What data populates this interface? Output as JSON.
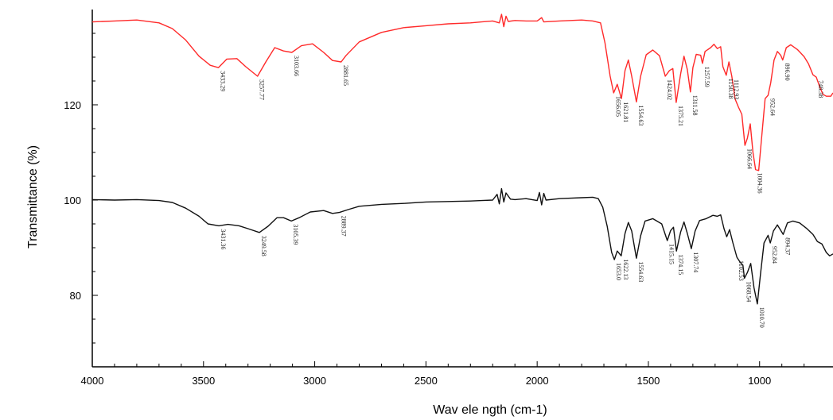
{
  "chart_data": {
    "type": "line",
    "title": "",
    "xlabel": "Wav ele ngth (cm-1)",
    "ylabel": "Transmittance (%)",
    "xlim": [
      4000,
      670
    ],
    "ylim": [
      65,
      140
    ],
    "x_ticks": [
      "4000",
      "3500",
      "3000",
      "2500",
      "2000",
      "1500",
      "1000"
    ],
    "y_ticks": [
      "80",
      "100",
      "120"
    ],
    "grid": false,
    "legend": "none",
    "series": [
      {
        "color": "#ff2a2a",
        "points": [
          [
            4000,
            137.4
          ],
          [
            3900,
            137.6
          ],
          [
            3800,
            137.8
          ],
          [
            3700,
            137.2
          ],
          [
            3640,
            136.0
          ],
          [
            3580,
            133.6
          ],
          [
            3520,
            130.2
          ],
          [
            3470,
            128.3
          ],
          [
            3433,
            127.8
          ],
          [
            3395,
            129.6
          ],
          [
            3350,
            129.7
          ],
          [
            3310,
            128.0
          ],
          [
            3257,
            126.0
          ],
          [
            3220,
            129.0
          ],
          [
            3180,
            132.0
          ],
          [
            3140,
            131.3
          ],
          [
            3103,
            131.0
          ],
          [
            3060,
            132.4
          ],
          [
            3010,
            132.8
          ],
          [
            2960,
            131.0
          ],
          [
            2920,
            129.3
          ],
          [
            2881,
            129.0
          ],
          [
            2860,
            130.3
          ],
          [
            2800,
            133.2
          ],
          [
            2700,
            135.2
          ],
          [
            2600,
            136.2
          ],
          [
            2500,
            136.6
          ],
          [
            2400,
            137.0
          ],
          [
            2300,
            137.2
          ],
          [
            2250,
            137.4
          ],
          [
            2200,
            137.6
          ],
          [
            2170,
            137.2
          ],
          [
            2160,
            139.0
          ],
          [
            2150,
            136.4
          ],
          [
            2140,
            138.6
          ],
          [
            2130,
            137.5
          ],
          [
            2100,
            137.7
          ],
          [
            2050,
            137.6
          ],
          [
            2000,
            137.6
          ],
          [
            1980,
            138.3
          ],
          [
            1970,
            137.4
          ],
          [
            1900,
            137.6
          ],
          [
            1800,
            137.8
          ],
          [
            1750,
            137.6
          ],
          [
            1715,
            137.2
          ],
          [
            1695,
            133.0
          ],
          [
            1672,
            126.0
          ],
          [
            1656,
            122.5
          ],
          [
            1640,
            124.3
          ],
          [
            1621,
            121.3
          ],
          [
            1605,
            127.2
          ],
          [
            1590,
            129.4
          ],
          [
            1575,
            126.0
          ],
          [
            1554,
            120.6
          ],
          [
            1535,
            126.0
          ],
          [
            1510,
            130.5
          ],
          [
            1480,
            131.5
          ],
          [
            1450,
            130.3
          ],
          [
            1424,
            126.0
          ],
          [
            1405,
            127.2
          ],
          [
            1390,
            127.6
          ],
          [
            1375,
            120.5
          ],
          [
            1355,
            126.5
          ],
          [
            1340,
            130.2
          ],
          [
            1325,
            127.4
          ],
          [
            1311,
            122.7
          ],
          [
            1300,
            127.8
          ],
          [
            1285,
            130.6
          ],
          [
            1265,
            130.4
          ],
          [
            1257,
            128.7
          ],
          [
            1245,
            131.2
          ],
          [
            1220,
            132.0
          ],
          [
            1205,
            132.7
          ],
          [
            1190,
            131.8
          ],
          [
            1175,
            132.2
          ],
          [
            1165,
            128.0
          ],
          [
            1150,
            126.2
          ],
          [
            1138,
            129.0
          ],
          [
            1125,
            126.0
          ],
          [
            1110,
            121.2
          ],
          [
            1095,
            119.5
          ],
          [
            1080,
            118.0
          ],
          [
            1066,
            111.5
          ],
          [
            1055,
            113.0
          ],
          [
            1042,
            116.0
          ],
          [
            1030,
            110.0
          ],
          [
            1018,
            106.4
          ],
          [
            1004,
            106.2
          ],
          [
            990,
            113.5
          ],
          [
            975,
            121.3
          ],
          [
            962,
            122.0
          ],
          [
            950,
            124.6
          ],
          [
            935,
            129.4
          ],
          [
            920,
            131.2
          ],
          [
            905,
            130.4
          ],
          [
            896,
            129.4
          ],
          [
            880,
            132.0
          ],
          [
            860,
            132.6
          ],
          [
            830,
            131.6
          ],
          [
            800,
            130.1
          ],
          [
            780,
            128.6
          ],
          [
            760,
            126.3
          ],
          [
            745,
            125.8
          ],
          [
            730,
            123.8
          ],
          [
            715,
            122.2
          ],
          [
            700,
            121.8
          ],
          [
            680,
            121.8
          ],
          [
            670,
            122.5
          ]
        ],
        "peak_labels": [
          {
            "x": 3433,
            "label": "3433.29"
          },
          {
            "x": 3257,
            "label": "3257.77"
          },
          {
            "x": 3103,
            "label": "3103.66"
          },
          {
            "x": 2881,
            "label": "2881.65"
          },
          {
            "x": 1656,
            "label": "1656.05"
          },
          {
            "x": 1621,
            "label": "1621.81"
          },
          {
            "x": 1554,
            "label": "1554.63"
          },
          {
            "x": 1424,
            "label": "1424.02"
          },
          {
            "x": 1375,
            "label": "1375.21"
          },
          {
            "x": 1311,
            "label": "1311.58"
          },
          {
            "x": 1257,
            "label": "1257.59"
          },
          {
            "x": 1150,
            "label": "1150.38"
          },
          {
            "x": 1125,
            "label": "1112.93"
          },
          {
            "x": 1066,
            "label": "1066.64"
          },
          {
            "x": 1018,
            "label": "1004.36"
          },
          {
            "x": 962,
            "label": "952.64"
          },
          {
            "x": 896,
            "label": "896.90"
          },
          {
            "x": 745,
            "label": "748.38"
          }
        ]
      },
      {
        "color": "#111111",
        "points": [
          [
            4000,
            100.1
          ],
          [
            3900,
            100.0
          ],
          [
            3800,
            100.1
          ],
          [
            3700,
            99.9
          ],
          [
            3640,
            99.5
          ],
          [
            3580,
            98.3
          ],
          [
            3520,
            96.6
          ],
          [
            3480,
            95.0
          ],
          [
            3431,
            94.6
          ],
          [
            3390,
            94.9
          ],
          [
            3340,
            94.6
          ],
          [
            3300,
            94.0
          ],
          [
            3249,
            93.2
          ],
          [
            3210,
            94.5
          ],
          [
            3170,
            96.3
          ],
          [
            3140,
            96.3
          ],
          [
            3105,
            95.6
          ],
          [
            3070,
            96.3
          ],
          [
            3020,
            97.5
          ],
          [
            2960,
            97.8
          ],
          [
            2920,
            97.2
          ],
          [
            2889,
            97.4
          ],
          [
            2850,
            98.0
          ],
          [
            2800,
            98.7
          ],
          [
            2700,
            99.1
          ],
          [
            2600,
            99.3
          ],
          [
            2500,
            99.6
          ],
          [
            2400,
            99.7
          ],
          [
            2300,
            99.8
          ],
          [
            2250,
            99.9
          ],
          [
            2200,
            100.0
          ],
          [
            2180,
            101.2
          ],
          [
            2170,
            99.2
          ],
          [
            2160,
            102.4
          ],
          [
            2150,
            99.6
          ],
          [
            2140,
            101.5
          ],
          [
            2120,
            100.2
          ],
          [
            2100,
            100.1
          ],
          [
            2050,
            100.3
          ],
          [
            2000,
            99.9
          ],
          [
            1990,
            101.6
          ],
          [
            1980,
            99.0
          ],
          [
            1970,
            101.4
          ],
          [
            1960,
            100.0
          ],
          [
            1900,
            100.3
          ],
          [
            1800,
            100.5
          ],
          [
            1750,
            100.6
          ],
          [
            1725,
            100.3
          ],
          [
            1705,
            98.5
          ],
          [
            1685,
            94.5
          ],
          [
            1665,
            89.0
          ],
          [
            1653,
            87.5
          ],
          [
            1640,
            89.3
          ],
          [
            1622,
            88.3
          ],
          [
            1605,
            93.0
          ],
          [
            1590,
            95.3
          ],
          [
            1575,
            93.5
          ],
          [
            1554,
            87.8
          ],
          [
            1535,
            92.5
          ],
          [
            1515,
            95.6
          ],
          [
            1480,
            96.1
          ],
          [
            1440,
            95.0
          ],
          [
            1415,
            91.5
          ],
          [
            1400,
            93.6
          ],
          [
            1387,
            94.3
          ],
          [
            1374,
            89.3
          ],
          [
            1355,
            93.3
          ],
          [
            1340,
            95.4
          ],
          [
            1325,
            93.0
          ],
          [
            1307,
            89.8
          ],
          [
            1290,
            93.5
          ],
          [
            1270,
            95.7
          ],
          [
            1240,
            96.1
          ],
          [
            1210,
            96.8
          ],
          [
            1190,
            96.6
          ],
          [
            1175,
            96.9
          ],
          [
            1160,
            94.0
          ],
          [
            1148,
            92.3
          ],
          [
            1135,
            93.8
          ],
          [
            1120,
            91.0
          ],
          [
            1102,
            88.0
          ],
          [
            1088,
            87.0
          ],
          [
            1075,
            86.3
          ],
          [
            1068,
            83.6
          ],
          [
            1055,
            84.8
          ],
          [
            1040,
            86.7
          ],
          [
            1025,
            81.6
          ],
          [
            1010,
            78.2
          ],
          [
            996,
            84.5
          ],
          [
            980,
            91.0
          ],
          [
            962,
            92.6
          ],
          [
            952,
            91.0
          ],
          [
            938,
            93.5
          ],
          [
            920,
            94.8
          ],
          [
            894,
            92.8
          ],
          [
            875,
            95.2
          ],
          [
            850,
            95.6
          ],
          [
            820,
            95.2
          ],
          [
            790,
            94.1
          ],
          [
            760,
            92.8
          ],
          [
            740,
            91.3
          ],
          [
            720,
            90.8
          ],
          [
            700,
            89.0
          ],
          [
            685,
            88.3
          ],
          [
            670,
            88.7
          ]
        ],
        "peak_labels": [
          {
            "x": 3431,
            "label": "3431.36"
          },
          {
            "x": 3249,
            "label": "3249.58"
          },
          {
            "x": 3105,
            "label": "3105.39"
          },
          {
            "x": 2889,
            "label": "2889.37"
          },
          {
            "x": 1653,
            "label": "1653.0"
          },
          {
            "x": 1622,
            "label": "1622.13"
          },
          {
            "x": 1554,
            "label": "1554.63"
          },
          {
            "x": 1415,
            "label": "1415.15"
          },
          {
            "x": 1374,
            "label": "1374.15"
          },
          {
            "x": 1307,
            "label": "1307.74"
          },
          {
            "x": 1102,
            "label": "1102.53"
          },
          {
            "x": 1068,
            "label": "1068.54"
          },
          {
            "x": 1010,
            "label": "1010.70"
          },
          {
            "x": 952,
            "label": "952.84"
          },
          {
            "x": 894,
            "label": "894.37"
          }
        ]
      }
    ]
  }
}
